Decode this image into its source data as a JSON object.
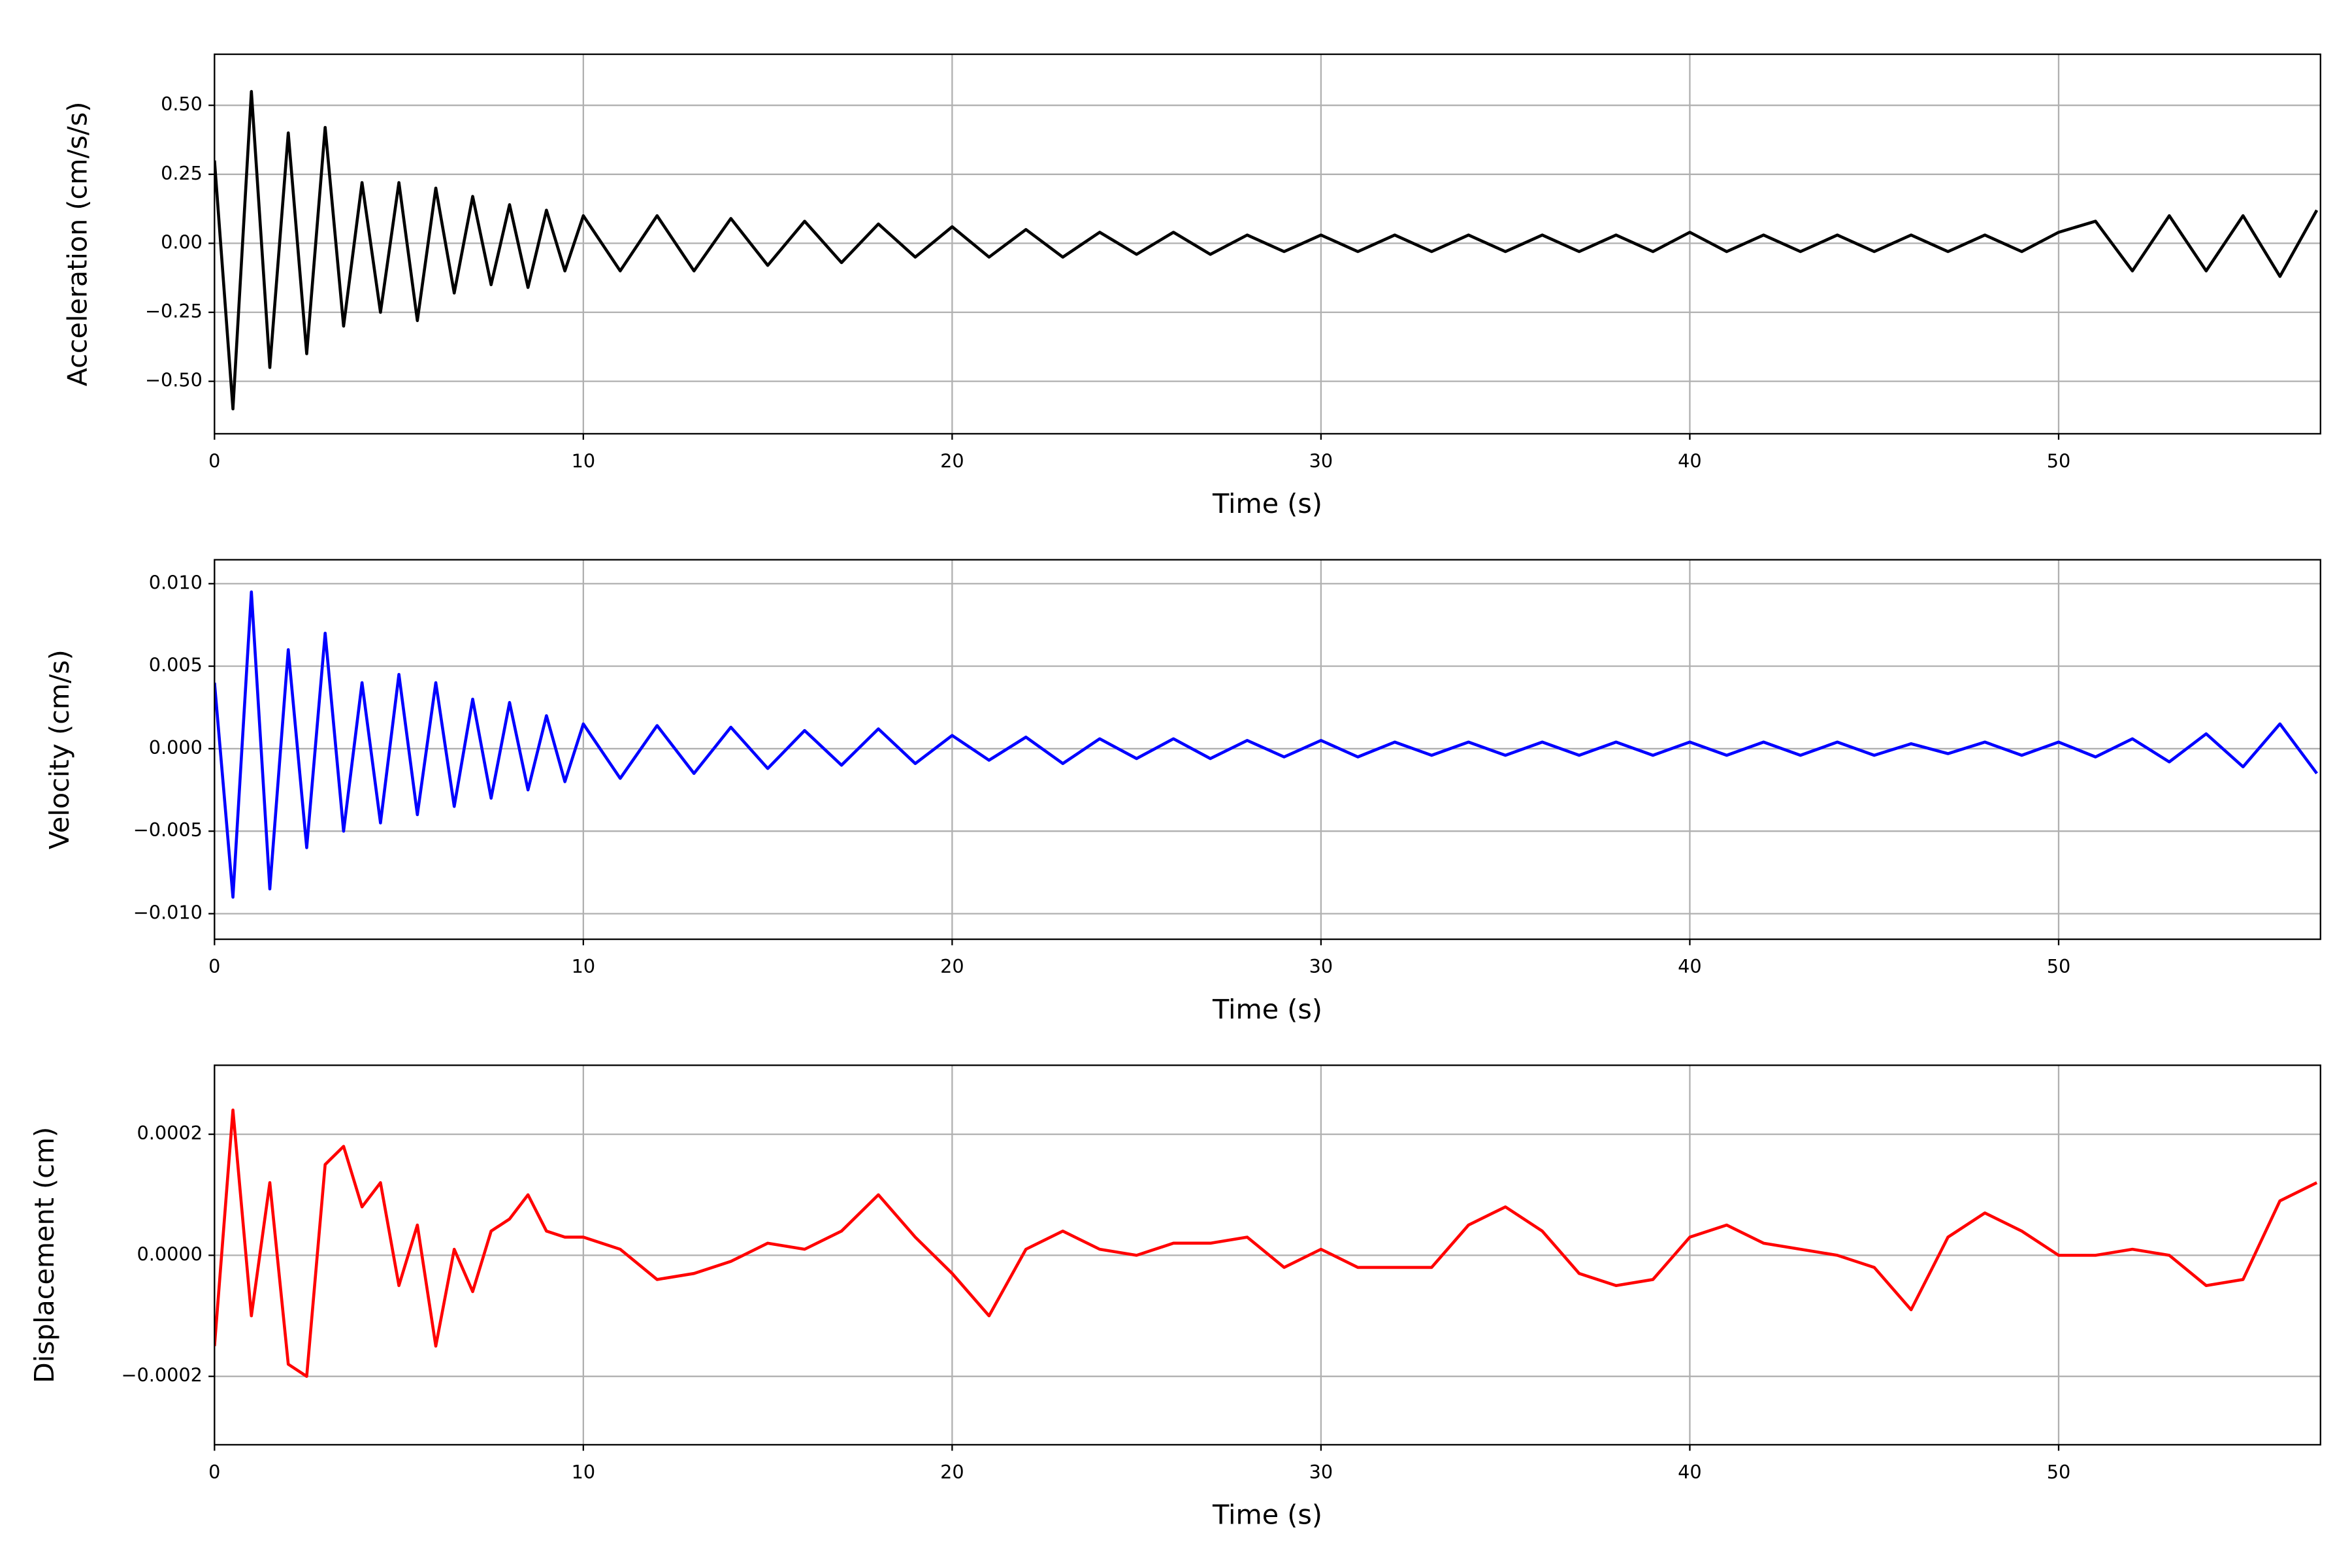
{
  "chart_data": [
    {
      "type": "line",
      "xlabel": "Time (s)",
      "ylabel": "Acceleration (cm/s/s)",
      "color": "#000000",
      "grid": true,
      "xlim": [
        0,
        57.1
      ],
      "ylim": [
        -0.69,
        0.685
      ],
      "xticks": [
        0,
        10,
        20,
        30,
        40,
        50
      ],
      "yticks": [
        {
          "value": -0.5,
          "label": "−0.50"
        },
        {
          "value": -0.25,
          "label": "−0.25"
        },
        {
          "value": 0,
          "label": "0.00"
        },
        {
          "value": 0.25,
          "label": "0.25"
        },
        {
          "value": 0.5,
          "label": "0.50"
        }
      ],
      "x": [
        0,
        0.5,
        1,
        1.5,
        2,
        2.5,
        3,
        3.5,
        4,
        4.5,
        5,
        5.5,
        6,
        6.5,
        7,
        7.5,
        8,
        8.5,
        9,
        9.5,
        10,
        11,
        12,
        13,
        14,
        15,
        16,
        17,
        18,
        19,
        20,
        21,
        22,
        23,
        24,
        25,
        26,
        27,
        28,
        29,
        30,
        31,
        32,
        33,
        34,
        35,
        36,
        37,
        38,
        39,
        40,
        41,
        42,
        43,
        44,
        45,
        46,
        47,
        48,
        49,
        50,
        51,
        52,
        53,
        54,
        55,
        56,
        57
      ],
      "values": [
        0.3,
        -0.6,
        0.55,
        -0.45,
        0.4,
        -0.4,
        0.42,
        -0.3,
        0.22,
        -0.25,
        0.22,
        -0.28,
        0.2,
        -0.18,
        0.17,
        -0.15,
        0.14,
        -0.16,
        0.12,
        -0.1,
        0.1,
        -0.1,
        0.1,
        -0.1,
        0.09,
        -0.08,
        0.08,
        -0.07,
        0.07,
        -0.05,
        0.06,
        -0.05,
        0.05,
        -0.05,
        0.04,
        -0.04,
        0.04,
        -0.04,
        0.03,
        -0.03,
        0.03,
        -0.03,
        0.03,
        -0.03,
        0.03,
        -0.03,
        0.03,
        -0.03,
        0.03,
        -0.03,
        0.04,
        -0.03,
        0.03,
        -0.03,
        0.03,
        -0.03,
        0.03,
        -0.03,
        0.03,
        -0.03,
        0.04,
        0.08,
        -0.1,
        0.1,
        -0.1,
        0.1,
        -0.12,
        0.12
      ]
    },
    {
      "type": "line",
      "xlabel": "Time (s)",
      "ylabel": "Velocity (cm/s)",
      "color": "#0000ff",
      "grid": true,
      "xlim": [
        0,
        57.1
      ],
      "ylim": [
        -0.01155,
        0.01145
      ],
      "xticks": [
        0,
        10,
        20,
        30,
        40,
        50
      ],
      "yticks": [
        {
          "value": -0.01,
          "label": "−0.010"
        },
        {
          "value": -0.005,
          "label": "−0.005"
        },
        {
          "value": 0,
          "label": "0.000"
        },
        {
          "value": 0.005,
          "label": "0.005"
        },
        {
          "value": 0.01,
          "label": "0.010"
        }
      ],
      "x": [
        0,
        0.5,
        1,
        1.5,
        2,
        2.5,
        3,
        3.5,
        4,
        4.5,
        5,
        5.5,
        6,
        6.5,
        7,
        7.5,
        8,
        8.5,
        9,
        9.5,
        10,
        11,
        12,
        13,
        14,
        15,
        16,
        17,
        18,
        19,
        20,
        21,
        22,
        23,
        24,
        25,
        26,
        27,
        28,
        29,
        30,
        31,
        32,
        33,
        34,
        35,
        36,
        37,
        38,
        39,
        40,
        41,
        42,
        43,
        44,
        45,
        46,
        47,
        48,
        49,
        50,
        51,
        52,
        53,
        54,
        55,
        56,
        57
      ],
      "values": [
        0.004,
        -0.009,
        0.0095,
        -0.0085,
        0.006,
        -0.006,
        0.007,
        -0.005,
        0.004,
        -0.0045,
        0.0045,
        -0.004,
        0.004,
        -0.0035,
        0.003,
        -0.003,
        0.0028,
        -0.0025,
        0.002,
        -0.002,
        0.0015,
        -0.0018,
        0.0014,
        -0.0015,
        0.0013,
        -0.0012,
        0.0011,
        -0.001,
        0.0012,
        -0.0009,
        0.0008,
        -0.0007,
        0.0007,
        -0.0009,
        0.0006,
        -0.0006,
        0.0006,
        -0.0006,
        0.0005,
        -0.0005,
        0.0005,
        -0.0005,
        0.0004,
        -0.0004,
        0.0004,
        -0.0004,
        0.0004,
        -0.0004,
        0.0004,
        -0.0004,
        0.0004,
        -0.0004,
        0.0004,
        -0.0004,
        0.0004,
        -0.0004,
        0.0003,
        -0.0003,
        0.0004,
        -0.0004,
        0.0004,
        -0.0005,
        0.0006,
        -0.0008,
        0.0009,
        -0.0011,
        0.0015,
        -0.0015
      ]
    },
    {
      "type": "line",
      "xlabel": "Time (s)",
      "ylabel": "Displacement (cm)",
      "color": "#ff0000",
      "grid": true,
      "xlim": [
        0,
        57.1
      ],
      "ylim": [
        -0.000313,
        0.000314
      ],
      "xticks": [
        0,
        10,
        20,
        30,
        40,
        50
      ],
      "yticks": [
        {
          "value": -0.0002,
          "label": "−0.0002"
        },
        {
          "value": 0,
          "label": "0.0000"
        },
        {
          "value": 0.0002,
          "label": "0.0002"
        }
      ],
      "x": [
        0,
        0.5,
        1,
        1.5,
        2,
        2.5,
        3,
        3.5,
        4,
        4.5,
        5,
        5.5,
        6,
        6.5,
        7,
        7.5,
        8,
        8.5,
        9,
        9.5,
        10,
        11,
        12,
        13,
        14,
        15,
        16,
        17,
        18,
        19,
        20,
        21,
        22,
        23,
        24,
        25,
        26,
        27,
        28,
        29,
        30,
        31,
        32,
        33,
        34,
        35,
        36,
        37,
        38,
        39,
        40,
        41,
        42,
        43,
        44,
        45,
        46,
        47,
        48,
        49,
        50,
        51,
        52,
        53,
        54,
        55,
        56,
        57
      ],
      "values": [
        -0.00015,
        0.00024,
        -0.0001,
        0.00012,
        -0.00018,
        -0.0002,
        0.00015,
        0.00018,
        8e-05,
        0.00012,
        -5e-05,
        5e-05,
        -0.00015,
        1e-05,
        -6e-05,
        4e-05,
        6e-05,
        0.0001,
        4e-05,
        3e-05,
        3e-05,
        1e-05,
        -4e-05,
        -3e-05,
        -1e-05,
        2e-05,
        1e-05,
        4e-05,
        0.0001,
        3e-05,
        -3e-05,
        -0.0001,
        1e-05,
        4e-05,
        1e-05,
        0.0,
        2e-05,
        2e-05,
        3e-05,
        -2e-05,
        1e-05,
        -2e-05,
        -2e-05,
        -2e-05,
        5e-05,
        8e-05,
        4e-05,
        -3e-05,
        -5e-05,
        -4e-05,
        3e-05,
        5e-05,
        2e-05,
        1e-05,
        0.0,
        -2e-05,
        -9e-05,
        3e-05,
        7e-05,
        4e-05,
        0.0,
        0.0,
        1e-05,
        0.0,
        -5e-05,
        -4e-05,
        9e-05,
        0.00012
      ]
    }
  ]
}
